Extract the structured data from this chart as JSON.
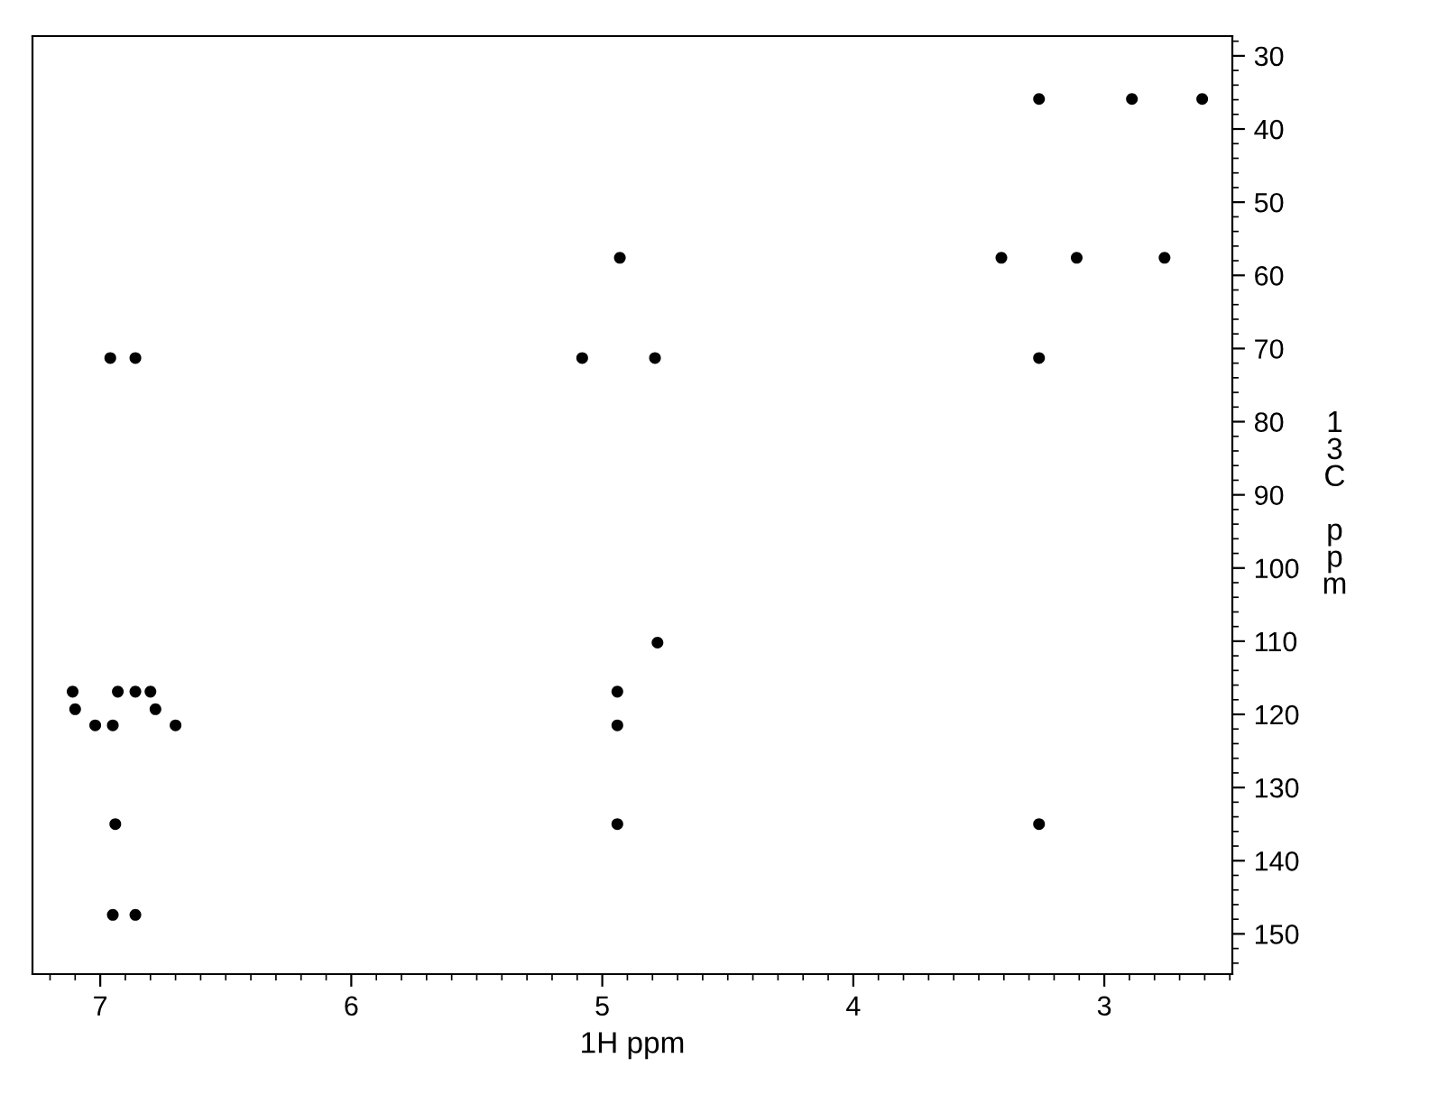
{
  "chart_data": {
    "type": "scatter",
    "xlabel": "1H ppm",
    "ylabel": "13C ppm",
    "xlim": [
      7.27,
      2.49
    ],
    "xticks": [
      7,
      6,
      5,
      4,
      3
    ],
    "ylim": [
      155.5,
      27.3
    ],
    "yticks": [
      30,
      40,
      50,
      60,
      70,
      80,
      90,
      100,
      110,
      120,
      130,
      140,
      150
    ],
    "marker": "circle",
    "grid": false,
    "series": [
      {
        "color": "#000000",
        "x": [
          3.26,
          2.89,
          2.61,
          4.93,
          3.41,
          3.11,
          2.76,
          6.96,
          6.86,
          5.08,
          4.79,
          3.26,
          4.78,
          7.11,
          6.93,
          6.86,
          6.8,
          4.94,
          7.1,
          6.78,
          7.02,
          6.95,
          6.7,
          4.94,
          6.94,
          4.94,
          3.26,
          6.95,
          6.86
        ],
        "values": [
          35.9,
          35.9,
          35.9,
          57.6,
          57.6,
          57.6,
          57.6,
          71.3,
          71.3,
          71.3,
          71.3,
          71.3,
          110.2,
          116.9,
          116.9,
          116.9,
          116.9,
          116.9,
          119.3,
          119.3,
          121.5,
          121.5,
          121.5,
          121.5,
          135.0,
          135.0,
          135.0,
          147.4,
          147.4
        ]
      }
    ]
  }
}
